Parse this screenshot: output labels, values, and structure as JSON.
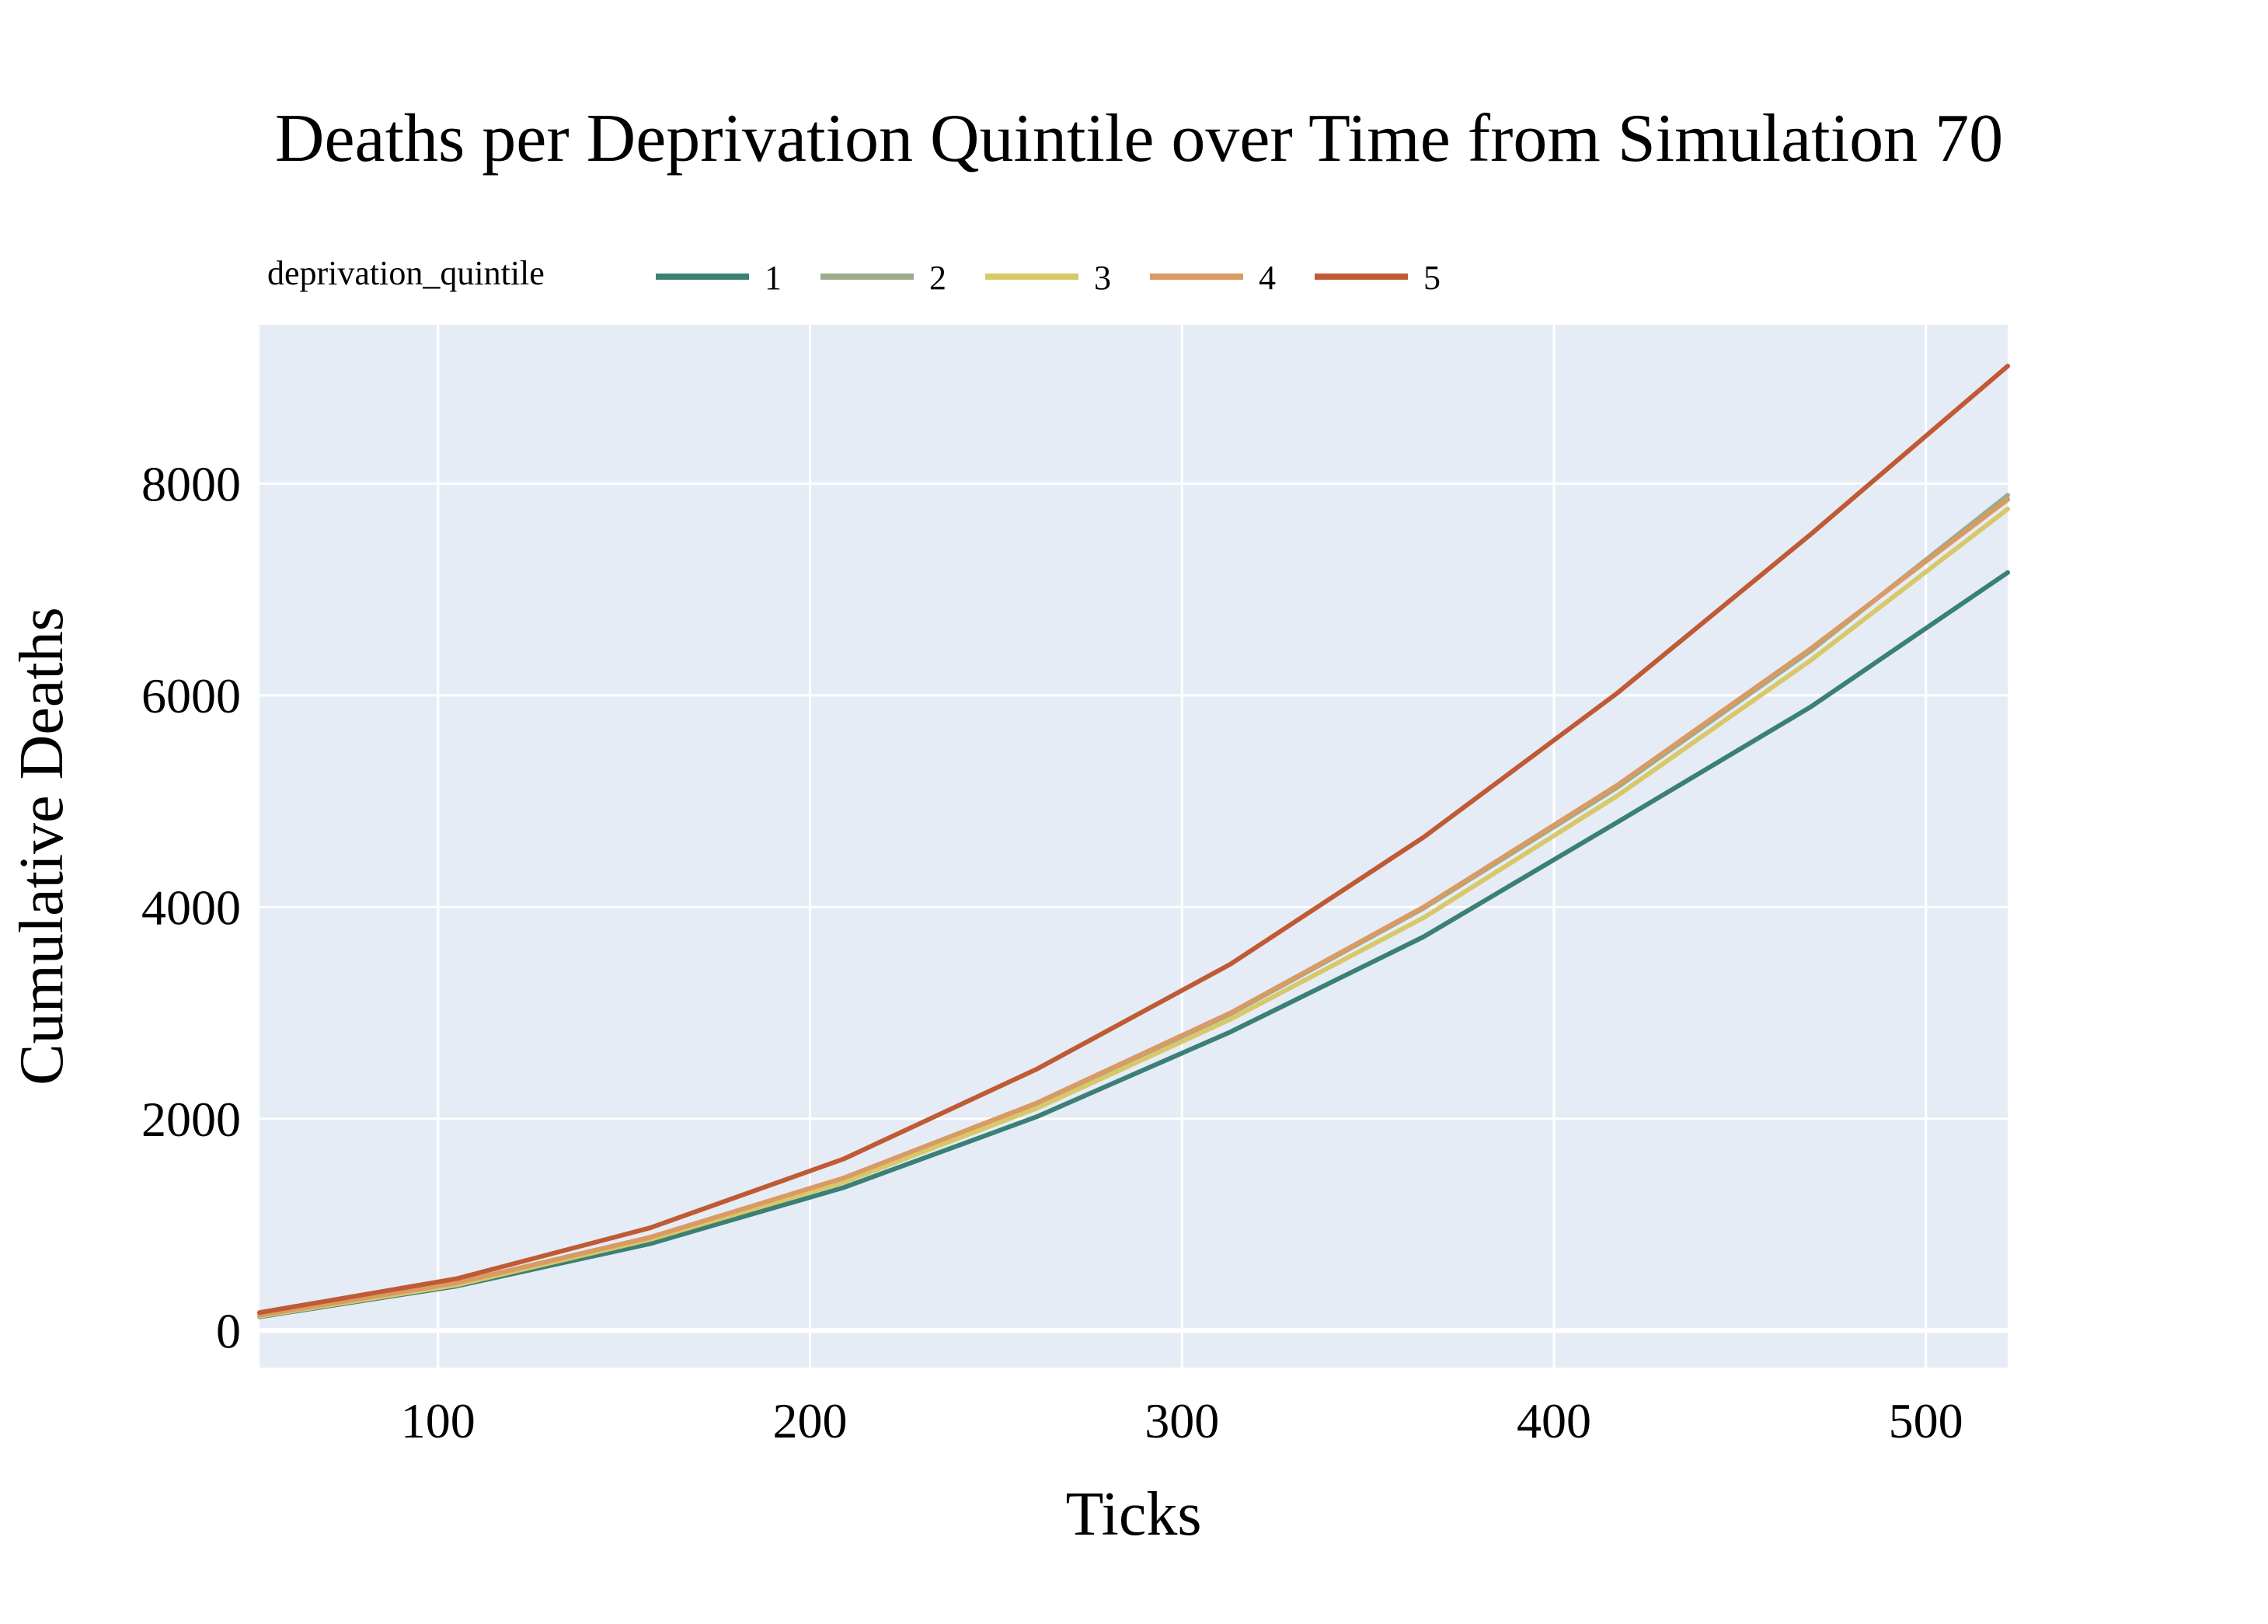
{
  "chart_data": {
    "type": "line",
    "title": "Deaths per Deprivation Quintile over Time from Simulation 70",
    "xlabel": "Ticks",
    "ylabel": "Cumulative Deaths",
    "legend_title": "deprivation_quintile",
    "legend_placement": "top-left",
    "grid": true,
    "xlim": [
      52,
      522
    ],
    "ylim": [
      -350,
      9500
    ],
    "x_ticks": [
      100,
      200,
      300,
      400,
      500
    ],
    "y_ticks": [
      0,
      2000,
      4000,
      6000,
      8000
    ],
    "x": [
      52,
      105,
      157,
      209,
      261,
      313,
      365,
      417,
      469,
      522
    ],
    "series": [
      {
        "name": "1",
        "color": "#3a8077",
        "values": [
          130,
          420,
          820,
          1350,
          2020,
          2820,
          3720,
          4800,
          5890,
          7160
        ]
      },
      {
        "name": "2",
        "color": "#9aac8c",
        "values": [
          140,
          450,
          880,
          1430,
          2140,
          2990,
          3990,
          5130,
          6420,
          7890
        ]
      },
      {
        "name": "3",
        "color": "#d8c86a",
        "values": [
          135,
          430,
          860,
          1400,
          2100,
          2940,
          3900,
          5050,
          6330,
          7760
        ]
      },
      {
        "name": "4",
        "color": "#d99a63",
        "values": [
          145,
          450,
          880,
          1440,
          2150,
          3000,
          4000,
          5150,
          6440,
          7850
        ]
      },
      {
        "name": "5",
        "color": "#c05a34",
        "values": [
          170,
          490,
          970,
          1620,
          2470,
          3460,
          4660,
          6020,
          7520,
          9110
        ]
      }
    ],
    "colors": {
      "plot_background": "#e5ecf6",
      "grid": "#ffffff"
    }
  }
}
